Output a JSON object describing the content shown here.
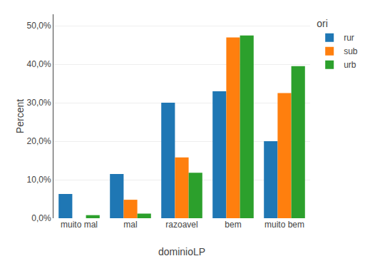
{
  "chart_data": {
    "type": "bar",
    "categories": [
      "muito mal",
      "mal",
      "razoavel",
      "bem",
      "muito bem"
    ],
    "series": [
      {
        "name": "rur",
        "values": [
          6.3,
          11.5,
          30.0,
          33.0,
          20.0
        ]
      },
      {
        "name": "sub",
        "values": [
          0.0,
          4.8,
          15.8,
          47.0,
          32.5
        ]
      },
      {
        "name": "urb",
        "values": [
          0.8,
          1.2,
          11.8,
          47.5,
          39.5
        ]
      }
    ],
    "legend_title": "ori",
    "xlabel": "dominioLP",
    "ylabel": "Percent",
    "ylim": [
      0,
      53
    ],
    "yticks": [
      {
        "value": 0.0,
        "label": "0,0%"
      },
      {
        "value": 10.0,
        "label": "10,0%"
      },
      {
        "value": 20.0,
        "label": "20,0%"
      },
      {
        "value": 30.0,
        "label": "30,0%"
      },
      {
        "value": 40.0,
        "label": "40,0%"
      },
      {
        "value": 50.0,
        "label": "50,0%"
      }
    ],
    "grid": true,
    "legend": "right"
  }
}
